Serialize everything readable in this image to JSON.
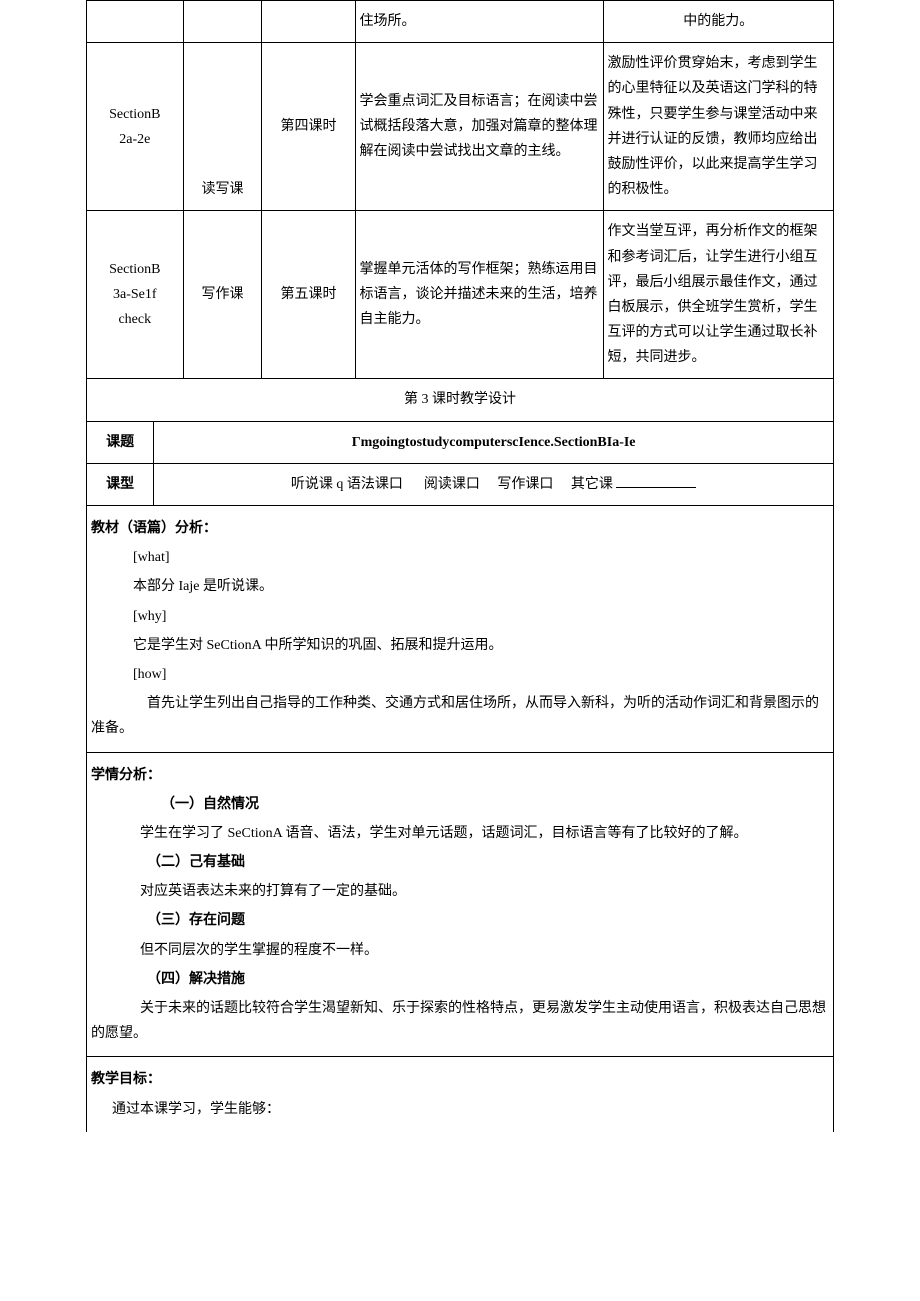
{
  "topTable": {
    "row0": {
      "c3": "住场所。",
      "c4": "中的能力。"
    },
    "row1": {
      "c0": "SectionB\n2a-2e",
      "c1": "读写课",
      "c2": "第四课时",
      "c3": "学会重点词汇及目标语言；在阅读中尝试概括段落大意，加强对篇章的整体理解在阅读中尝试找出文章的主线。",
      "c4": "激励性评价贯穿始末，考虑到学生的心里特征以及英语这门学科的特殊性，只要学生参与课堂活动中来并进行认证的反馈，教师均应给出鼓励性评价，以此来提高学生学习的积极性。"
    },
    "row2": {
      "c0": "SectionB\n3a-Se1f\ncheck",
      "c1": "写作课",
      "c2": "第五课时",
      "c3": "掌握单元活体的写作框架；熟练运用目标语言，谈论并描述未来的生活，培养自主能力。",
      "c4": "作文当堂互评，再分析作文的框架和参考词汇后，让学生进行小组互评，最后小组展示最佳作文，通过白板展示，供全班学生赏析，学生互评的方式可以让学生通过取长补短，共同进步。"
    }
  },
  "design": {
    "title": "第 3 课时教学设计",
    "ktLabel": "课题",
    "ktValue": "ΓmgoingtostudycomputerscIence.SectionBIa-Ie",
    "kxLabel": "课型",
    "types": {
      "t1": "听说课 q 语法课口",
      "t2": "阅读课口",
      "t3": "写作课口",
      "t4": "其它课"
    }
  },
  "analysis": {
    "materialTitle": "教材（语篇）分析：",
    "what": "[what]",
    "whatBody": "本部分 Iaje 是听说课。",
    "why": "[why]",
    "whyBody": "它是学生对 SeCtionA 中所学知识的巩固、拓展和提升运用。",
    "how": "[how]",
    "howBody": "首先让学生列出自己指导的工作种类、交通方式和居住场所，从而导入新科，为听的活动作词汇和背景图示的准备。"
  },
  "learner": {
    "title": "学情分析：",
    "s1t": "（一）自然情况",
    "s1b": "学生在学习了 SeCtionA 语音、语法，学生对单元话题，话题词汇，目标语言等有了比较好的了解。",
    "s2t": "（二）己有基础",
    "s2b": "对应英语表达未来的打算有了一定的基础。",
    "s3t": "（三）存在问题",
    "s3b": "但不同层次的学生掌握的程度不一样。",
    "s4t": "（四）解决措施",
    "s4b": "关于未来的话题比较符合学生渴望新知、乐于探索的性格特点，更易激发学生主动使用语言，积极表达自己思想的愿望。"
  },
  "goals": {
    "title": "教学目标：",
    "body": "通过本课学习，学生能够："
  }
}
